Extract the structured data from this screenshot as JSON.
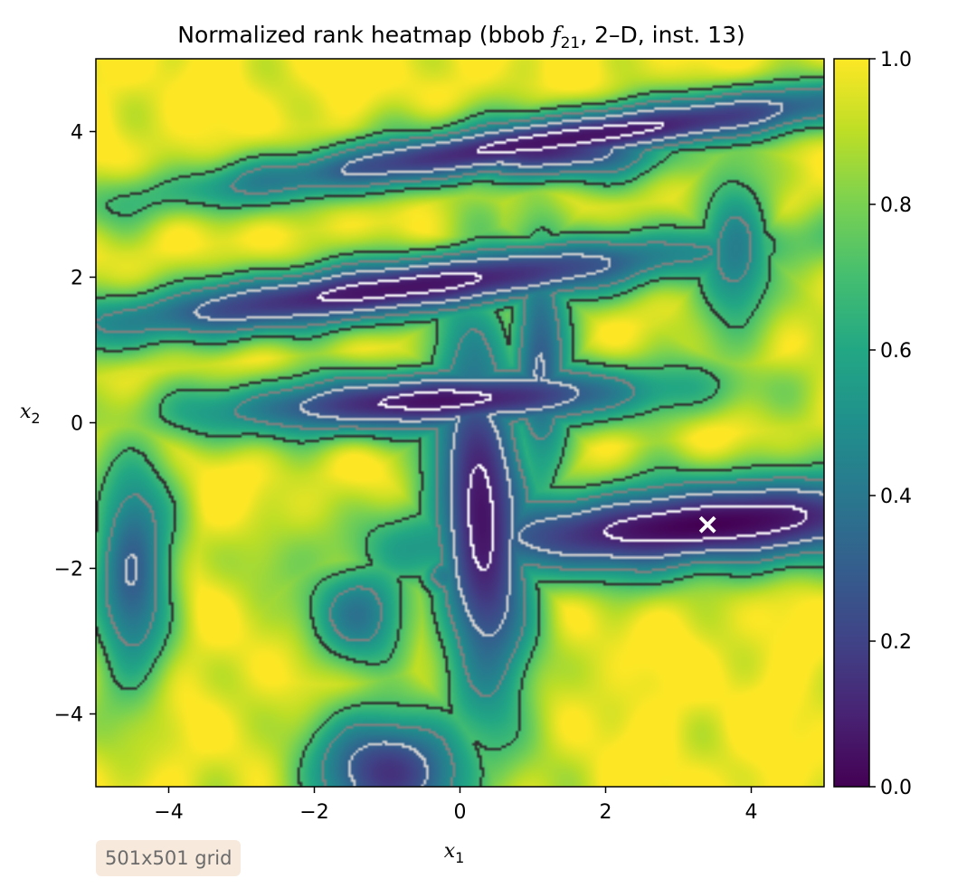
{
  "chart_data": {
    "type": "heatmap",
    "title_parts": {
      "prefix": "Normalized rank heatmap (bbob ",
      "func": "f",
      "func_sub": "21",
      "suffix": ", 2–D, inst. 13)"
    },
    "xlabel": {
      "var": "x",
      "sub": "1"
    },
    "ylabel": {
      "var": "x",
      "sub": "2"
    },
    "xlim": [
      -5,
      5
    ],
    "ylim": [
      -5,
      5
    ],
    "xticks": [
      -4,
      -2,
      0,
      2,
      4
    ],
    "xtick_labels": [
      "−4",
      "−2",
      "0",
      "2",
      "4"
    ],
    "yticks": [
      -4,
      -2,
      0,
      2,
      4
    ],
    "ytick_labels": [
      "−4",
      "−2",
      "0",
      "2",
      "4"
    ],
    "colormap": "viridis",
    "color_range": [
      0,
      1
    ],
    "colorbar_ticks": [
      0,
      0.2,
      0.4,
      0.6,
      0.8,
      1.0
    ],
    "colorbar_tick_labels": [
      "0.0",
      "0.2",
      "0.4",
      "0.6",
      "0.8",
      "1.0"
    ],
    "contour_levels": [
      0.1,
      0.3,
      0.5,
      0.7
    ],
    "contour_colors": [
      "#ffffff",
      "#d0d0d0",
      "#808080",
      "#303030"
    ],
    "marker": {
      "x": 3.4,
      "y": -1.4,
      "symbol": "x",
      "color": "#ffffff"
    },
    "basins": [
      {
        "cx": 3.4,
        "cy": -1.4,
        "rx": 3.2,
        "ry": 0.5,
        "rot": 0.08,
        "depth": 1.0
      },
      {
        "cx": 0.3,
        "cy": -1.3,
        "rx": 0.55,
        "ry": 2.2,
        "rot": 0.05,
        "depth": 0.95
      },
      {
        "cx": -0.3,
        "cy": 0.3,
        "rx": 2.6,
        "ry": 0.35,
        "rot": 0.05,
        "depth": 0.95
      },
      {
        "cx": -0.8,
        "cy": 1.85,
        "rx": 3.8,
        "ry": 0.35,
        "rot": 0.12,
        "depth": 0.95
      },
      {
        "cx": 1.5,
        "cy": 3.9,
        "rx": 4.2,
        "ry": 0.3,
        "rot": 0.14,
        "depth": 0.95
      },
      {
        "cx": 1.1,
        "cy": 3.75,
        "rx": 1.4,
        "ry": 0.35,
        "rot": 0.0,
        "depth": 0.9
      },
      {
        "cx": -0.95,
        "cy": -4.8,
        "rx": 0.9,
        "ry": 0.7,
        "rot": 0.0,
        "depth": 0.85
      },
      {
        "cx": -4.5,
        "cy": -2.0,
        "rx": 0.45,
        "ry": 1.3,
        "rot": 0.0,
        "depth": 0.7
      },
      {
        "cx": -1.4,
        "cy": -2.6,
        "rx": 0.6,
        "ry": 0.6,
        "rot": 0.0,
        "depth": 0.6
      },
      {
        "cx": 1.1,
        "cy": 0.9,
        "rx": 0.35,
        "ry": 1.5,
        "rot": 0.0,
        "depth": 0.7
      },
      {
        "cx": 3.8,
        "cy": 2.3,
        "rx": 0.45,
        "ry": 1.0,
        "rot": 0.0,
        "depth": 0.55
      },
      {
        "cx": -0.2,
        "cy": -2.1,
        "rx": 0.3,
        "ry": 0.3,
        "rot": 0.0,
        "depth": 0.6
      }
    ],
    "annotation": "501x501 grid"
  }
}
